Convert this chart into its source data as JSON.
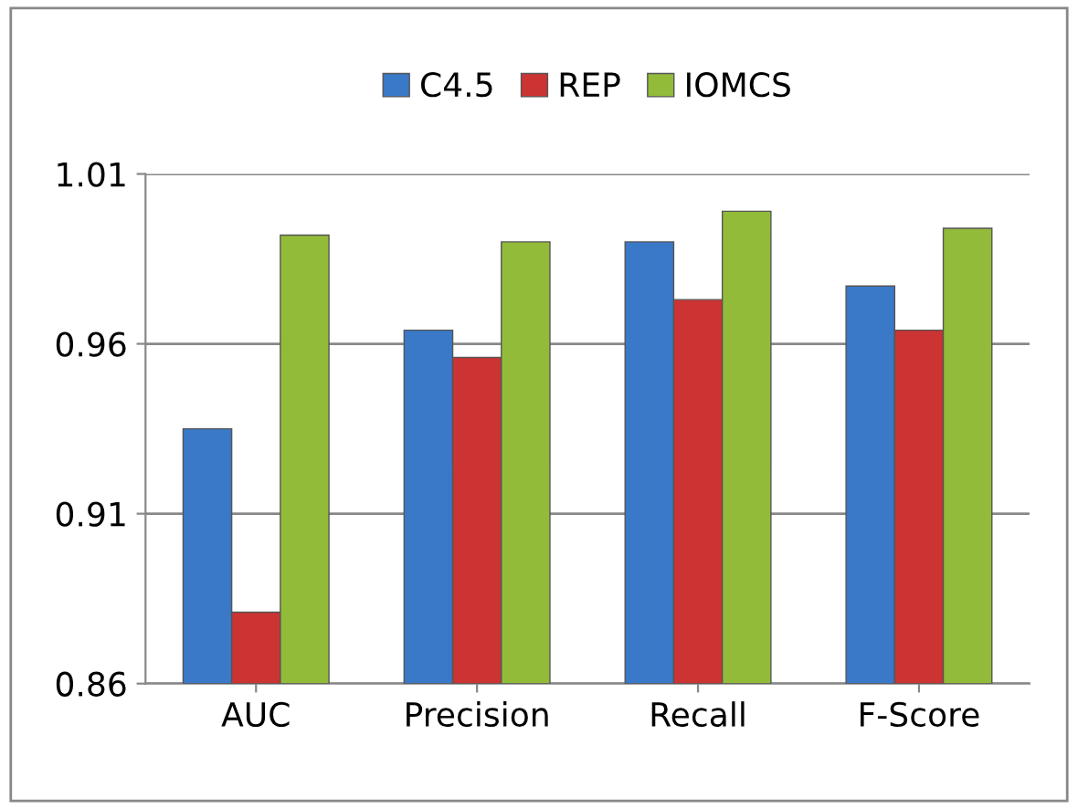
{
  "chart_data": {
    "type": "bar",
    "categories": [
      "AUC",
      "Precision",
      "Recall",
      "F-Score"
    ],
    "series": [
      {
        "name": "C4.5",
        "color": "#3a78c8",
        "values": [
          0.935,
          0.964,
          0.99,
          0.977
        ]
      },
      {
        "name": "REP",
        "color": "#cc3333",
        "values": [
          0.881,
          0.956,
          0.973,
          0.964
        ]
      },
      {
        "name": "IOMCS",
        "color": "#92bb3a",
        "values": [
          0.992,
          0.99,
          0.999,
          0.994
        ]
      }
    ],
    "ylim": [
      0.86,
      1.01
    ],
    "yticks": [
      {
        "value": 0.86,
        "label": "0.86"
      },
      {
        "value": 0.91,
        "label": "0.91"
      },
      {
        "value": 0.96,
        "label": "0.96"
      },
      {
        "value": 1.01,
        "label": "1.01"
      }
    ],
    "grid": "y",
    "legend": "top"
  }
}
